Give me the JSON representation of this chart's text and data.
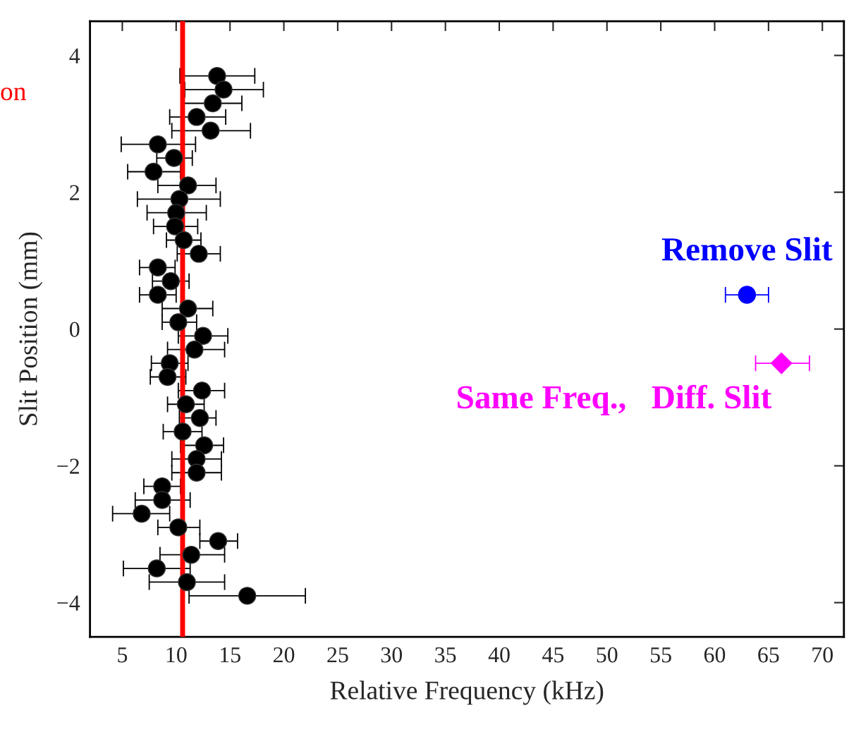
{
  "chart_data": {
    "type": "scatter",
    "xlabel": "Relative Frequency (kHz)",
    "ylabel": "Slit Position (mm)",
    "xlim": [
      2,
      72
    ],
    "ylim": [
      -4.5,
      4.5
    ],
    "xticks": [
      5,
      10,
      15,
      20,
      25,
      30,
      35,
      40,
      45,
      50,
      55,
      60,
      65,
      70
    ],
    "yticks": [
      {
        "value": -4,
        "label": "−4"
      },
      {
        "value": -2,
        "label": "−2"
      },
      0,
      2,
      4
    ],
    "grid": false,
    "annotations": [
      "on"
    ],
    "ref_lines": [
      {
        "axis": "x",
        "value": 10.6,
        "color": "#ff0000"
      }
    ],
    "series": [
      {
        "color": "#000000",
        "marker": "circle",
        "x": [
          13.8,
          14.4,
          13.4,
          11.9,
          13.2,
          8.3,
          9.8,
          7.9,
          11.1,
          10.3,
          10.0,
          9.9,
          10.7,
          12.1,
          8.3,
          9.5,
          8.3,
          11.1,
          10.2,
          12.5,
          11.7,
          9.4,
          9.2,
          12.4,
          10.9,
          12.2,
          10.6,
          12.6,
          11.9,
          11.9,
          8.7,
          8.7,
          6.8,
          10.2,
          13.9,
          11.4,
          8.2,
          11.0,
          16.6
        ],
        "values": [
          3.7,
          3.5,
          3.3,
          3.1,
          2.9,
          2.7,
          2.5,
          2.3,
          2.1,
          1.9,
          1.7,
          1.5,
          1.3,
          1.1,
          0.9,
          0.7,
          0.5,
          0.3,
          0.1,
          -0.1,
          -0.3,
          -0.5,
          -0.7,
          -0.9,
          -1.1,
          -1.3,
          -1.5,
          -1.7,
          -1.9,
          -2.1,
          -2.3,
          -2.5,
          -2.7,
          -2.9,
          -3.1,
          -3.3,
          -3.5,
          -3.7,
          -3.9
        ],
        "xerrors": [
          [
            10.35,
            17.3
          ],
          [
            10.8,
            18.1
          ],
          [
            10.5,
            16.1
          ],
          [
            9.4,
            14.6
          ],
          [
            9.6,
            16.9
          ],
          [
            4.9,
            11.8
          ],
          [
            8.2,
            11.5
          ],
          [
            5.5,
            10.4
          ],
          [
            8.3,
            13.7
          ],
          [
            6.4,
            14.1
          ],
          [
            7.3,
            12.8
          ],
          [
            7.9,
            12.0
          ],
          [
            9.1,
            12.3
          ],
          [
            10.1,
            14.1
          ],
          [
            6.6,
            9.9
          ],
          [
            7.8,
            11.2
          ],
          [
            6.6,
            10.0
          ],
          [
            8.7,
            13.4
          ],
          [
            8.7,
            11.9
          ],
          [
            10.2,
            14.8
          ],
          [
            9.2,
            14.5
          ],
          [
            7.7,
            11.1
          ],
          [
            7.6,
            10.9
          ],
          [
            10.2,
            14.5
          ],
          [
            9.2,
            12.6
          ],
          [
            10.3,
            13.7
          ],
          [
            8.8,
            12.4
          ],
          [
            10.4,
            14.4
          ],
          [
            9.6,
            14.2
          ],
          [
            9.6,
            14.2
          ],
          [
            7.0,
            10.4
          ],
          [
            6.2,
            11.3
          ],
          [
            4.1,
            9.4
          ],
          [
            8.3,
            12.2
          ],
          [
            12.2,
            15.7
          ],
          [
            8.5,
            14.5
          ],
          [
            5.1,
            11.3
          ],
          [
            7.5,
            14.5
          ],
          [
            11.2,
            22.0
          ]
        ]
      },
      {
        "name": "Remove Slit",
        "color": "#0000ff",
        "marker": "circle",
        "x": [
          63.0
        ],
        "values": [
          0.5
        ],
        "xerrors": [
          [
            61.0,
            65.0
          ]
        ]
      },
      {
        "name": "Same Freq.,   Diff. Slit",
        "color": "#ff00ff",
        "marker": "diamond",
        "x": [
          66.2
        ],
        "values": [
          -0.5
        ],
        "xerrors": [
          [
            63.8,
            68.8
          ]
        ]
      }
    ]
  }
}
